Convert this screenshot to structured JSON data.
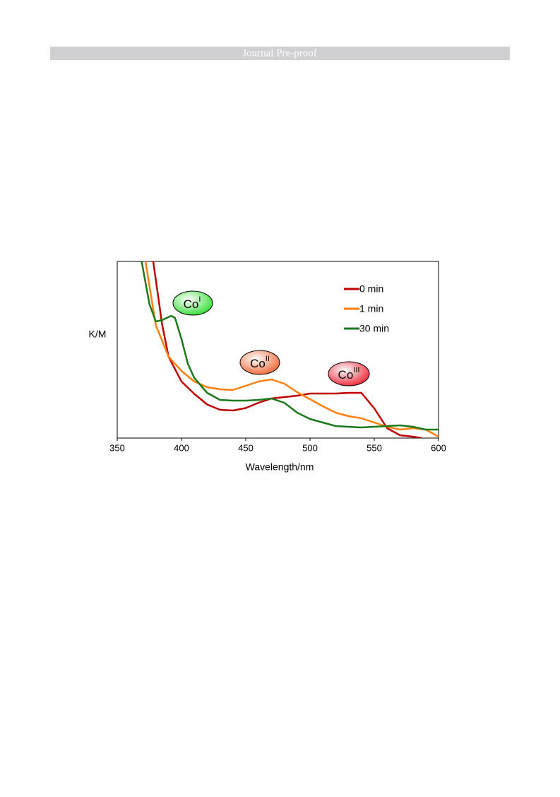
{
  "header": {
    "title": "Journal Pre-proof"
  },
  "chart_data": {
    "type": "line",
    "xlabel": "Wavelength/nm",
    "ylabel": "K/M",
    "xlim": [
      350,
      600
    ],
    "xticks": [
      350,
      400,
      450,
      500,
      550,
      600
    ],
    "ylim": [
      0,
      1
    ],
    "legend": "upper right",
    "annotations": [
      {
        "text": "Co",
        "sup": "I",
        "color": "#33dd33"
      },
      {
        "text": "Co",
        "sup": "II",
        "color": "#ee6633"
      },
      {
        "text": "Co",
        "sup": "III",
        "color": "#ee2233"
      }
    ],
    "series": [
      {
        "name": "0 min",
        "color": "#c00000",
        "x": [
          378,
          385,
          390,
          400,
          410,
          420,
          430,
          440,
          450,
          460,
          470,
          480,
          490,
          500,
          510,
          520,
          530,
          540,
          550,
          560,
          570,
          580,
          587
        ],
        "values": [
          1.0,
          0.64,
          0.46,
          0.32,
          0.25,
          0.19,
          0.16,
          0.156,
          0.17,
          0.2,
          0.224,
          0.232,
          0.24,
          0.252,
          0.252,
          0.252,
          0.256,
          0.256,
          0.168,
          0.056,
          0.016,
          0.008,
          0
        ]
      },
      {
        "name": "1 min",
        "color": "#ff7f0e",
        "x": [
          372,
          380,
          390,
          400,
          410,
          420,
          430,
          440,
          450,
          460,
          470,
          480,
          490,
          500,
          510,
          520,
          530,
          540,
          550,
          560,
          570,
          580,
          590,
          600
        ],
        "values": [
          1.0,
          0.64,
          0.46,
          0.38,
          0.32,
          0.288,
          0.276,
          0.272,
          0.296,
          0.32,
          0.332,
          0.308,
          0.26,
          0.22,
          0.18,
          0.144,
          0.124,
          0.112,
          0.088,
          0.064,
          0.048,
          0.056,
          0.048,
          0.008
        ]
      },
      {
        "name": "30 min",
        "color": "#1a7a1a",
        "x": [
          369,
          375,
          380,
          385,
          392,
          395,
          400,
          405,
          410,
          420,
          430,
          440,
          450,
          460,
          470,
          480,
          490,
          500,
          510,
          520,
          530,
          540,
          550,
          560,
          570,
          580,
          590,
          600
        ],
        "values": [
          1.0,
          0.76,
          0.66,
          0.668,
          0.692,
          0.68,
          0.56,
          0.42,
          0.34,
          0.256,
          0.216,
          0.212,
          0.212,
          0.216,
          0.224,
          0.2,
          0.144,
          0.108,
          0.088,
          0.068,
          0.064,
          0.06,
          0.064,
          0.068,
          0.072,
          0.064,
          0.048,
          0.048
        ]
      }
    ]
  }
}
